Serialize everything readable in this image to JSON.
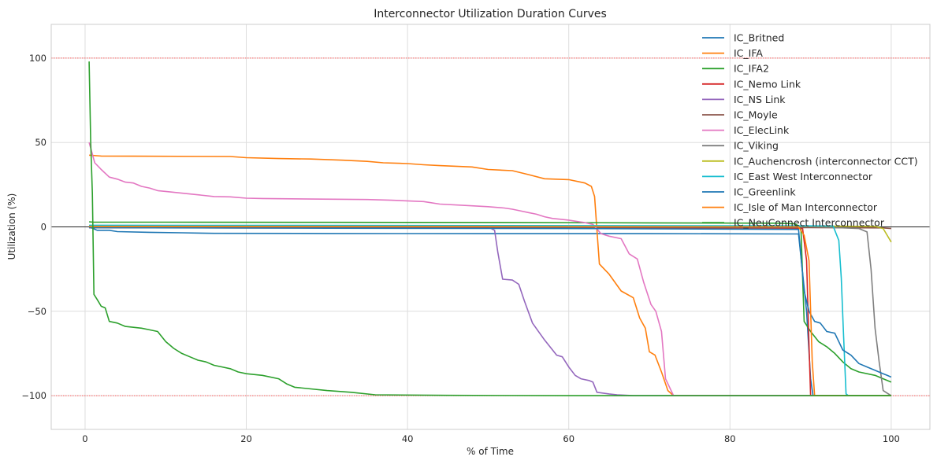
{
  "chart_data": {
    "type": "line",
    "title": "Interconnector Utilization Duration Curves",
    "xlabel": "% of Time",
    "ylabel": "Utilization (%)",
    "xlim": [
      -4.2,
      104.8
    ],
    "ylim": [
      -120,
      120
    ],
    "xticks": [
      0,
      20,
      40,
      60,
      80,
      100
    ],
    "xtick_labels": [
      "0",
      "20",
      "40",
      "60",
      "80",
      "100"
    ],
    "yticks": [
      -100,
      -50,
      0,
      50,
      100
    ],
    "ytick_labels": [
      "−100",
      "−50",
      "0",
      "50",
      "100"
    ],
    "grid": true,
    "legend_position": "top-right",
    "reference_lines": [
      {
        "y": 100,
        "color": "#ff5a5a",
        "style": "dotted"
      },
      {
        "y": -100,
        "color": "#ff5a5a",
        "style": "dotted"
      },
      {
        "y": 0,
        "color": "#222222",
        "style": "solid"
      }
    ],
    "series": [
      {
        "name": "IC_Britned",
        "color": "#1f77b4",
        "points": [
          [
            0.5,
            0
          ],
          [
            1,
            -1
          ],
          [
            1.5,
            -2
          ],
          [
            3,
            -2
          ],
          [
            4,
            -2.8
          ],
          [
            8,
            -3.2
          ],
          [
            12,
            -3.5
          ],
          [
            16,
            -3.8
          ],
          [
            30,
            -3.9
          ],
          [
            50,
            -4
          ],
          [
            70,
            -4
          ],
          [
            88.5,
            -4.2
          ],
          [
            89.5,
            -50
          ],
          [
            90,
            -90
          ],
          [
            90.3,
            -100
          ],
          [
            100,
            -100
          ]
        ]
      },
      {
        "name": "IC_IFA",
        "color": "#ff7f0e",
        "points": [
          [
            0.5,
            42.5
          ],
          [
            2,
            42
          ],
          [
            6,
            41.9
          ],
          [
            18,
            41.7
          ],
          [
            20,
            41
          ],
          [
            24,
            40.5
          ],
          [
            28,
            40.2
          ],
          [
            32,
            39.5
          ],
          [
            35,
            38.8
          ],
          [
            37,
            38
          ],
          [
            40,
            37.5
          ],
          [
            42,
            36.8
          ],
          [
            44,
            36.3
          ],
          [
            48,
            35.5
          ],
          [
            50,
            34
          ],
          [
            53,
            33.3
          ],
          [
            55,
            31
          ],
          [
            57,
            28.5
          ],
          [
            60,
            28
          ],
          [
            62,
            26
          ],
          [
            62.8,
            24
          ],
          [
            63.2,
            18
          ],
          [
            63.5,
            -2
          ],
          [
            63.8,
            -22
          ],
          [
            65,
            -28
          ],
          [
            66.5,
            -38
          ],
          [
            68,
            -42
          ],
          [
            68.8,
            -54
          ],
          [
            69.5,
            -60
          ],
          [
            70,
            -74
          ],
          [
            70.7,
            -76
          ],
          [
            71.5,
            -86
          ],
          [
            72.3,
            -97
          ],
          [
            73,
            -100
          ],
          [
            100,
            -100
          ]
        ]
      },
      {
        "name": "IC_IFA2",
        "color": "#2ca02c",
        "points": [
          [
            0.5,
            3
          ],
          [
            1,
            2.8
          ],
          [
            10,
            2.8
          ],
          [
            30,
            2.7
          ],
          [
            50,
            2.6
          ],
          [
            70,
            2.4
          ],
          [
            86,
            2.2
          ],
          [
            88,
            1.8
          ],
          [
            88.8,
            0
          ],
          [
            89.2,
            -56
          ],
          [
            90,
            -62
          ],
          [
            91,
            -68
          ],
          [
            92,
            -71
          ],
          [
            93,
            -75
          ],
          [
            94,
            -80
          ],
          [
            95,
            -84
          ],
          [
            96,
            -86
          ],
          [
            98,
            -88
          ],
          [
            99,
            -90
          ],
          [
            100,
            -92
          ]
        ]
      },
      {
        "name": "IC_Nemo Link",
        "color": "#d62728",
        "points": [
          [
            0.5,
            -0.5
          ],
          [
            20,
            -0.6
          ],
          [
            50,
            -0.6
          ],
          [
            80,
            -0.7
          ],
          [
            89,
            -0.8
          ],
          [
            89.5,
            -20
          ],
          [
            89.8,
            -70
          ],
          [
            90,
            -100
          ],
          [
            100,
            -100
          ]
        ]
      },
      {
        "name": "IC_NS Link",
        "color": "#9467bd",
        "points": [
          [
            0.5,
            0
          ],
          [
            30,
            0
          ],
          [
            50,
            0
          ],
          [
            50.8,
            -2
          ],
          [
            51.2,
            -15
          ],
          [
            51.8,
            -31
          ],
          [
            53,
            -31.5
          ],
          [
            53.8,
            -34
          ],
          [
            54.5,
            -44
          ],
          [
            55.5,
            -57
          ],
          [
            57,
            -67
          ],
          [
            58.5,
            -76
          ],
          [
            59.2,
            -77
          ],
          [
            60,
            -83
          ],
          [
            60.8,
            -88
          ],
          [
            61.5,
            -90
          ],
          [
            62.5,
            -91
          ],
          [
            63,
            -92
          ],
          [
            63.5,
            -98
          ],
          [
            65,
            -99
          ],
          [
            66,
            -99.5
          ],
          [
            68,
            -100
          ],
          [
            100,
            -100
          ]
        ]
      },
      {
        "name": "IC_Moyle",
        "color": "#8c564b",
        "points": [
          [
            0.5,
            -0.3
          ],
          [
            50,
            -0.3
          ],
          [
            90,
            -0.4
          ],
          [
            99,
            -0.6
          ],
          [
            100,
            -1
          ]
        ]
      },
      {
        "name": "IC_ElecLink",
        "color": "#e377c2",
        "points": [
          [
            0.5,
            50
          ],
          [
            0.8,
            45
          ],
          [
            1.2,
            38
          ],
          [
            2,
            34
          ],
          [
            3,
            29.5
          ],
          [
            4,
            28.3
          ],
          [
            5,
            26.5
          ],
          [
            6,
            26
          ],
          [
            7,
            24
          ],
          [
            8,
            23
          ],
          [
            9,
            21.5
          ],
          [
            10,
            21
          ],
          [
            12,
            20
          ],
          [
            14,
            19
          ],
          [
            16,
            18
          ],
          [
            18,
            17.8
          ],
          [
            20,
            17
          ],
          [
            22,
            16.8
          ],
          [
            28,
            16.5
          ],
          [
            35,
            16.2
          ],
          [
            38,
            15.8
          ],
          [
            42,
            15
          ],
          [
            44,
            13.5
          ],
          [
            48,
            12.5
          ],
          [
            50,
            12
          ],
          [
            52,
            11.2
          ],
          [
            53,
            10.5
          ],
          [
            54,
            9.5
          ],
          [
            55,
            8.5
          ],
          [
            56,
            7.5
          ],
          [
            57,
            6
          ],
          [
            58,
            5
          ],
          [
            59,
            4.5
          ],
          [
            60,
            4
          ],
          [
            61,
            3.2
          ],
          [
            62,
            2.5
          ],
          [
            63,
            1.5
          ],
          [
            64,
            -4
          ],
          [
            65,
            -5.5
          ],
          [
            66.5,
            -7
          ],
          [
            67.5,
            -16
          ],
          [
            68.5,
            -19
          ],
          [
            69.3,
            -33
          ],
          [
            70.2,
            -46
          ],
          [
            70.8,
            -50
          ],
          [
            71.5,
            -62
          ],
          [
            72,
            -90
          ],
          [
            72.5,
            -95
          ],
          [
            73,
            -100
          ],
          [
            100,
            -100
          ]
        ]
      },
      {
        "name": "IC_Viking",
        "color": "#7f7f7f",
        "points": [
          [
            0.5,
            0.5
          ],
          [
            50,
            0.3
          ],
          [
            90,
            0.2
          ],
          [
            96,
            -1
          ],
          [
            97,
            -3
          ],
          [
            97.5,
            -25
          ],
          [
            98,
            -60
          ],
          [
            98.5,
            -80
          ],
          [
            99,
            -97
          ],
          [
            99.5,
            -98.5
          ],
          [
            100,
            -100
          ]
        ]
      },
      {
        "name": "IC_Auchencrosh (interconnector CCT)",
        "color": "#bcbd22",
        "points": [
          [
            0.5,
            0.8
          ],
          [
            50,
            0.6
          ],
          [
            90,
            0.5
          ],
          [
            98,
            0.3
          ],
          [
            99,
            -1
          ],
          [
            100,
            -9
          ]
        ]
      },
      {
        "name": "IC_East West Interconnector",
        "color": "#17becf",
        "points": [
          [
            0.5,
            1
          ],
          [
            50,
            0.8
          ],
          [
            90,
            0.6
          ],
          [
            92.8,
            0.5
          ],
          [
            93.5,
            -8
          ],
          [
            93.8,
            -30
          ],
          [
            94.1,
            -65
          ],
          [
            94.4,
            -99
          ],
          [
            94.7,
            -100
          ],
          [
            100,
            -100
          ]
        ]
      },
      {
        "name": "IC_Greenlink",
        "color": "#1f77b4",
        "points": [
          [
            0.5,
            -0.5
          ],
          [
            30,
            -0.8
          ],
          [
            60,
            -1
          ],
          [
            88.5,
            -1.5
          ],
          [
            89.2,
            -38
          ],
          [
            89.8,
            -50
          ],
          [
            90.5,
            -56
          ],
          [
            91.2,
            -57
          ],
          [
            92,
            -62
          ],
          [
            93,
            -63
          ],
          [
            94,
            -73
          ],
          [
            95,
            -76
          ],
          [
            96,
            -81
          ],
          [
            97,
            -83
          ],
          [
            98,
            -85
          ],
          [
            99,
            -87
          ],
          [
            99.5,
            -88
          ],
          [
            100,
            -89
          ]
        ]
      },
      {
        "name": "IC_Isle of Man Interconnector",
        "color": "#ff7f0e",
        "points": [
          [
            0.5,
            0.2
          ],
          [
            50,
            0.2
          ],
          [
            88.5,
            0
          ],
          [
            89.2,
            -5
          ],
          [
            89.8,
            -20
          ],
          [
            90.2,
            -80
          ],
          [
            90.5,
            -100
          ],
          [
            100,
            -100
          ]
        ]
      },
      {
        "name": "IC_NeuConnect Interconnector",
        "color": "#2ca02c",
        "points": [
          [
            0.5,
            98
          ],
          [
            0.7,
            50
          ],
          [
            0.9,
            20
          ],
          [
            1.1,
            -40
          ],
          [
            1.5,
            -43
          ],
          [
            2,
            -47
          ],
          [
            2.5,
            -48
          ],
          [
            3,
            -56
          ],
          [
            4,
            -57
          ],
          [
            5,
            -59
          ],
          [
            6,
            -59.5
          ],
          [
            7,
            -60
          ],
          [
            8,
            -61
          ],
          [
            9,
            -62
          ],
          [
            10,
            -68
          ],
          [
            11,
            -72
          ],
          [
            12,
            -75
          ],
          [
            13,
            -77
          ],
          [
            14,
            -79
          ],
          [
            15,
            -80
          ],
          [
            16,
            -82
          ],
          [
            17,
            -83
          ],
          [
            18,
            -84
          ],
          [
            19,
            -86
          ],
          [
            20,
            -87
          ],
          [
            22,
            -88
          ],
          [
            24,
            -90
          ],
          [
            25,
            -93
          ],
          [
            26,
            -95
          ],
          [
            28,
            -96
          ],
          [
            30,
            -97
          ],
          [
            33,
            -98
          ],
          [
            36,
            -99.5
          ],
          [
            45,
            -99.8
          ],
          [
            60,
            -100
          ],
          [
            100,
            -100
          ]
        ]
      }
    ]
  }
}
